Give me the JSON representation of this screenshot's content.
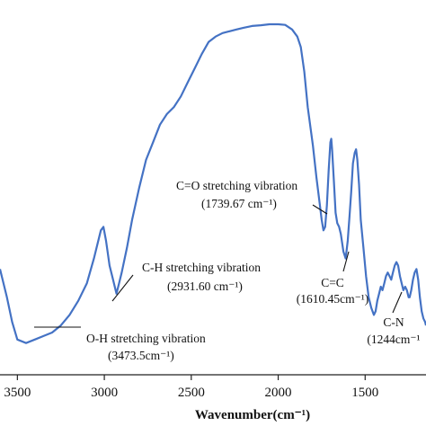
{
  "chart_data": {
    "type": "line",
    "xlabel": "Wavenumber(cm⁻¹)",
    "ylabel": "",
    "xlim": [
      3600,
      1150
    ],
    "x_reversed": true,
    "ylim": [
      0,
      100
    ],
    "x_ticks": [
      3500,
      3000,
      2500,
      2000,
      1500
    ],
    "grid": false,
    "line_color": "#4472c4",
    "series": [
      {
        "x": [
          3600,
          3560,
          3530,
          3500,
          3450,
          3400,
          3350,
          3300,
          3250,
          3200,
          3150,
          3100,
          3060,
          3020,
          3005,
          2990,
          2970,
          2950,
          2930,
          2915,
          2900,
          2870,
          2840,
          2800,
          2760,
          2720,
          2680,
          2640,
          2600,
          2560,
          2520,
          2480,
          2440,
          2400,
          2360,
          2320,
          2280,
          2240,
          2200,
          2150,
          2100,
          2050,
          2000,
          1960,
          1920,
          1890,
          1870,
          1850,
          1830,
          1800,
          1780,
          1760,
          1750,
          1740,
          1730,
          1720,
          1710,
          1700,
          1695,
          1690,
          1680,
          1670,
          1660,
          1650,
          1640,
          1625,
          1612,
          1600,
          1590,
          1580,
          1570,
          1560,
          1552,
          1545,
          1535,
          1525,
          1510,
          1495,
          1480,
          1465,
          1450,
          1440,
          1430,
          1420,
          1410,
          1400,
          1390,
          1380,
          1370,
          1360,
          1350,
          1340,
          1330,
          1320,
          1310,
          1300,
          1290,
          1280,
          1270,
          1260,
          1250,
          1244,
          1235,
          1225,
          1215,
          1205,
          1195,
          1185,
          1175,
          1165,
          1155,
          1150
        ],
        "y": [
          30,
          22,
          15,
          10,
          9,
          10,
          11,
          12,
          14,
          17,
          21,
          26,
          33,
          41,
          42,
          38,
          31,
          27,
          23,
          26,
          29,
          36,
          44,
          53,
          61,
          66,
          71,
          74,
          76,
          79,
          83,
          87,
          91,
          94.5,
          96,
          97,
          97.5,
          98,
          98.5,
          99,
          99.2,
          99.5,
          99.5,
          99.3,
          98,
          96,
          93,
          86,
          76,
          65,
          56,
          48,
          44,
          41,
          42,
          48,
          58,
          66,
          67,
          64,
          55,
          46,
          43,
          42,
          40,
          35,
          33,
          38,
          45,
          52,
          60,
          63,
          64,
          61,
          54,
          44,
          36,
          28,
          22,
          19,
          17,
          18,
          21,
          23,
          25,
          24,
          26,
          28,
          29,
          28,
          27,
          29,
          31,
          32,
          31,
          28,
          26,
          24,
          25,
          24,
          22,
          22,
          24,
          27,
          29,
          30,
          27,
          22,
          18,
          16,
          15,
          14
        ]
      }
    ],
    "annotations": [
      {
        "line1": "O-H stretching vibration",
        "line2": "(3473.5cm⁻¹)",
        "x": 3473.5,
        "y": 9
      },
      {
        "line1": "C-H stretching vibration",
        "line2": "(2931.60 cm⁻¹)",
        "x": 2931.6,
        "y": 23
      },
      {
        "line1": "C=O stretching vibration",
        "line2": "(1739.67 cm⁻¹)",
        "x": 1739.67,
        "y": 41
      },
      {
        "line1": "C=C",
        "line2": "(1610.45cm⁻¹)",
        "x": 1610.45,
        "y": 33
      },
      {
        "line1": "C-N",
        "line2": "(1244cm⁻¹",
        "x": 1244,
        "y": 22
      }
    ]
  }
}
